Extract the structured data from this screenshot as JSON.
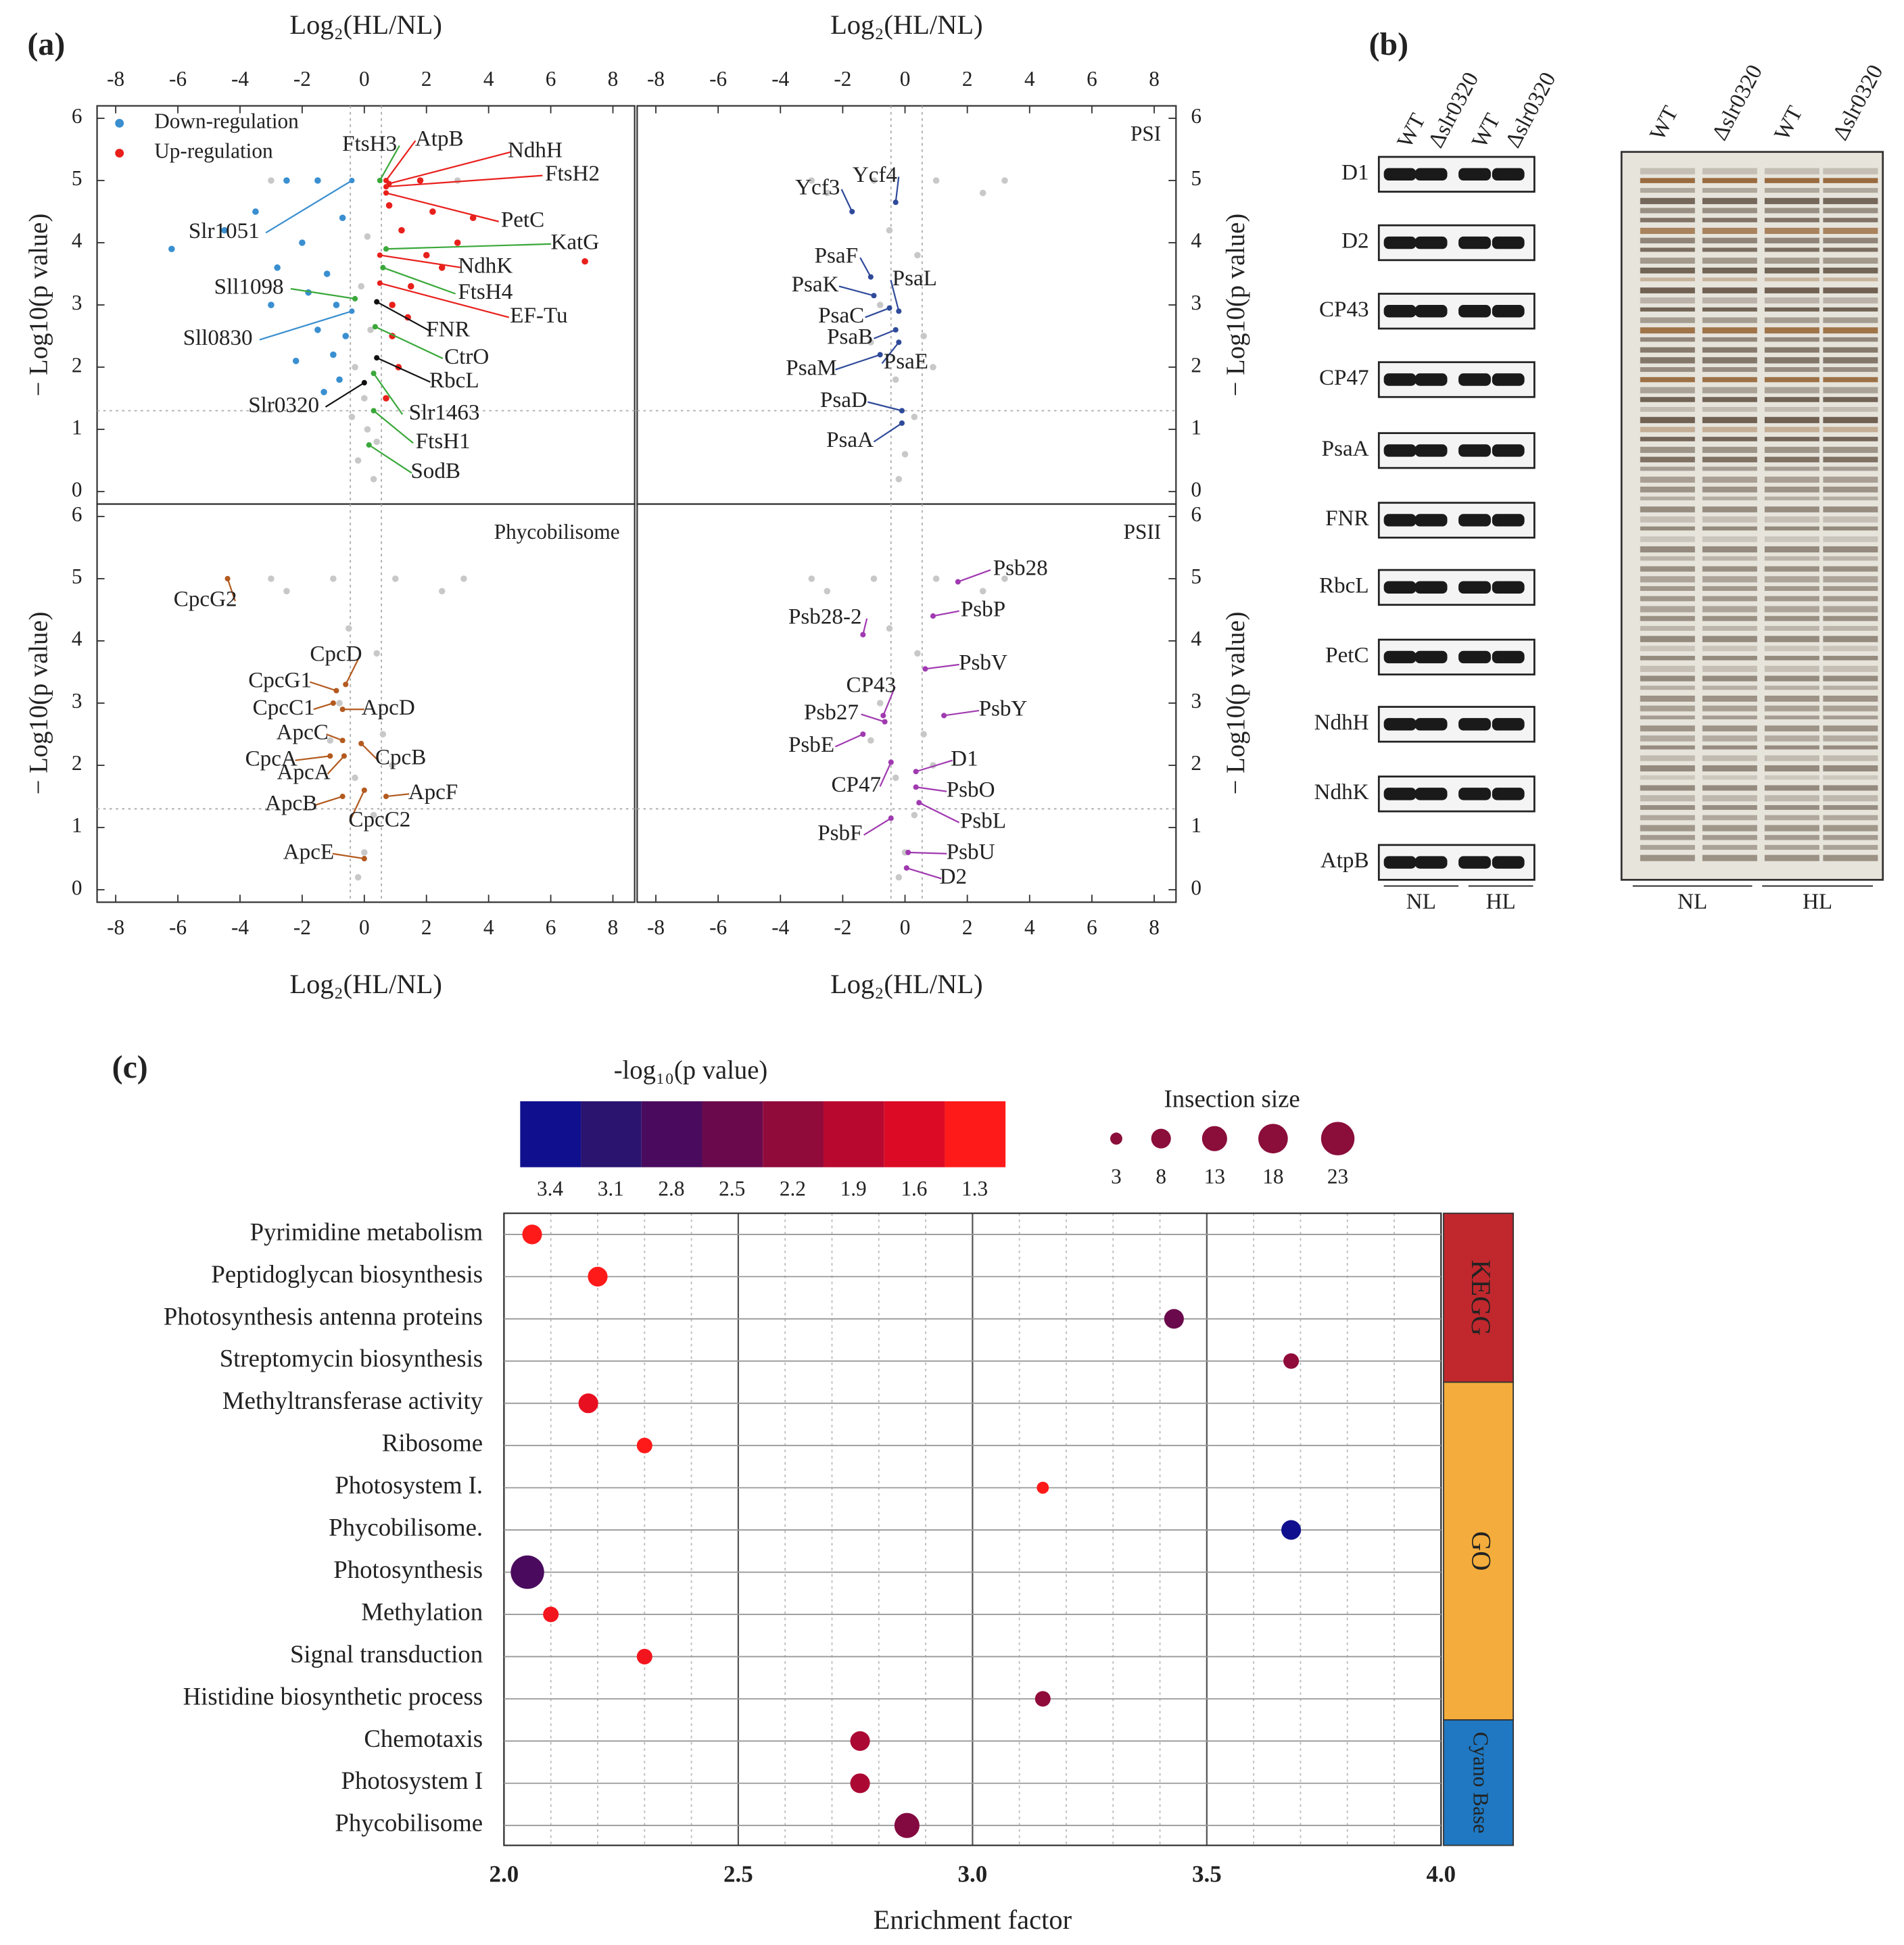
{
  "panels": [
    "(a)",
    "(b)",
    "(c)"
  ],
  "blot": {
    "lanes": [
      "WT",
      "Δslr0320",
      "WT",
      "Δslr0320"
    ],
    "proteins": [
      "D1",
      "D2",
      "CP43",
      "CP47",
      "PsaA",
      "FNR",
      "RbcL",
      "PetC",
      "NdhH",
      "NdhK",
      "AtpB"
    ],
    "groups": [
      "NL",
      "HL"
    ]
  },
  "gel": {
    "lanes": [
      "WT",
      "Δslr0320",
      "WT",
      "Δslr0320"
    ],
    "groups": [
      "NL",
      "HL"
    ]
  },
  "chart_data": [
    {
      "type": "scatter",
      "xlabel": "Log₂(HL/NL)",
      "ylabel": "− Log10(p value)",
      "xaxis": "top",
      "yaxis": "left",
      "xlim": [
        -8.6,
        8.7
      ],
      "ylim": [
        -0.2,
        6.2
      ],
      "xticks": [
        -8,
        -6,
        -4,
        -2,
        0,
        2,
        4,
        6,
        8
      ],
      "yticks": [
        0,
        1,
        2,
        3,
        4,
        5,
        6
      ],
      "thresholds": {
        "y": 1.3,
        "x": [
          -0.45,
          0.55
        ]
      },
      "legend": "upper left",
      "series": [
        {
          "name": "Down-regulation",
          "color": "#3a8fd0",
          "x": [
            -6.2,
            -4.5,
            -3.5,
            -2.8,
            -2,
            -1.8,
            -1.5,
            -1.2,
            -1,
            -0.8,
            -0.7,
            -2.5,
            -1.5,
            -0.9,
            -3,
            -1.3,
            -2.2,
            -0.6
          ],
          "values": [
            3.9,
            4.2,
            4.5,
            3.6,
            4.0,
            3.2,
            2.6,
            3.5,
            2.2,
            1.8,
            4.4,
            5.0,
            5.0,
            3.0,
            3.0,
            1.6,
            2.1,
            2.5
          ]
        },
        {
          "name": "Up-regulation",
          "color": "#e8201c",
          "x": [
            0.8,
            1.2,
            2,
            3,
            1.5,
            0.9,
            2.5,
            1.1,
            0.7,
            1.8,
            3.5,
            7.1,
            0.9,
            1.4,
            2.2
          ],
          "values": [
            4.6,
            4.2,
            3.8,
            4.0,
            3.3,
            2.5,
            3.6,
            2.0,
            1.5,
            5.0,
            4.4,
            3.7,
            3.0,
            2.8,
            4.5
          ]
        },
        {
          "color": "#c8c8c8",
          "x": [
            0.1,
            -0.2,
            0.3,
            0,
            -0.3,
            0.2,
            -0.1,
            0.1,
            3,
            -3,
            0.4,
            -0.4
          ],
          "values": [
            1.0,
            0.5,
            0.2,
            1.5,
            2.0,
            2.6,
            3.3,
            4.1,
            5,
            5,
            0.8,
            1.2
          ]
        }
      ],
      "annotations": [
        {
          "text": "FtsH3",
          "x": 0.5,
          "y": 5.0,
          "color": "#3aa83a"
        },
        {
          "text": "AtpB",
          "x": 0.7,
          "y": 5.0,
          "color": "#e8201c"
        },
        {
          "text": "NdhH",
          "x": 0.8,
          "y": 4.95,
          "color": "#e8201c"
        },
        {
          "text": "FtsH2",
          "x": 0.7,
          "y": 4.9,
          "color": "#e8201c"
        },
        {
          "text": "PetC",
          "x": 0.7,
          "y": 4.8,
          "color": "#e8201c"
        },
        {
          "text": "KatG",
          "x": 0.7,
          "y": 3.9,
          "color": "#3aa83a"
        },
        {
          "text": "NdhK",
          "x": 0.5,
          "y": 3.8,
          "color": "#e8201c"
        },
        {
          "text": "FtsH4",
          "x": 0.6,
          "y": 3.6,
          "color": "#3aa83a"
        },
        {
          "text": "EF-Tu",
          "x": 0.5,
          "y": 3.35,
          "color": "#e8201c"
        },
        {
          "text": "FNR",
          "x": 0.4,
          "y": 3.05,
          "color": "#111111"
        },
        {
          "text": "CtrO",
          "x": 0.35,
          "y": 2.65,
          "color": "#3aa83a"
        },
        {
          "text": "RbcL",
          "x": 0.4,
          "y": 2.15,
          "color": "#111111"
        },
        {
          "text": "Slr1463",
          "x": 0.3,
          "y": 1.9,
          "color": "#3aa83a"
        },
        {
          "text": "FtsH1",
          "x": 0.3,
          "y": 1.3,
          "color": "#3aa83a"
        },
        {
          "text": "SodB",
          "x": 0.15,
          "y": 0.75,
          "color": "#3aa83a"
        },
        {
          "text": "Slr0320",
          "x": 0,
          "y": 1.75,
          "color": "#111111"
        },
        {
          "text": "Slr1051",
          "x": -0.4,
          "y": 5.0,
          "color": "#3a8fd0"
        },
        {
          "text": "Sll1098",
          "x": -0.3,
          "y": 3.1,
          "color": "#3aa83a"
        },
        {
          "text": "Sll0830",
          "x": -0.4,
          "y": 2.9,
          "color": "#3a8fd0"
        }
      ]
    },
    {
      "type": "scatter",
      "title": "PSI",
      "title_color": "#2f4a9a",
      "xlabel": "Log₂(HL/NL)",
      "ylabel": "− Log10(p value)",
      "xaxis": "top",
      "yaxis": "right",
      "xlim": [
        -8.6,
        8.7
      ],
      "ylim": [
        -0.2,
        6.2
      ],
      "xticks": [
        -8,
        -6,
        -4,
        -2,
        0,
        2,
        4,
        6,
        8
      ],
      "yticks": [
        0,
        1,
        2,
        3,
        4,
        5,
        6
      ],
      "thresholds": {
        "y": 1.3,
        "x": [
          -0.45,
          0.55
        ]
      },
      "series": [
        {
          "color": "#c8c8c8",
          "x": [
            -1,
            1,
            -2.5,
            2.5,
            -0.5,
            0.4,
            -0.8,
            0.6,
            -0.3,
            0.3,
            0,
            -0.2,
            0.9,
            -1.1,
            3.2,
            -3
          ],
          "values": [
            5,
            5,
            4.8,
            4.8,
            4.2,
            3.8,
            3.0,
            2.5,
            1.8,
            1.2,
            0.6,
            0.2,
            2.0,
            2.4,
            5,
            5
          ]
        }
      ],
      "annotations": [
        {
          "text": "Ycf3",
          "x": -1.7,
          "y": 4.5,
          "color": "#2f4a9a"
        },
        {
          "text": "Ycf4",
          "x": -0.3,
          "y": 4.65,
          "color": "#2f4a9a"
        },
        {
          "text": "PsaF",
          "x": -1.1,
          "y": 3.45,
          "color": "#2f4a9a"
        },
        {
          "text": "PsaK",
          "x": -1.0,
          "y": 3.15,
          "color": "#2f4a9a"
        },
        {
          "text": "PsaL",
          "x": -0.2,
          "y": 2.9,
          "color": "#2f4a9a"
        },
        {
          "text": "PsaC",
          "x": -0.5,
          "y": 2.95,
          "color": "#2f4a9a"
        },
        {
          "text": "PsaB",
          "x": -0.3,
          "y": 2.6,
          "color": "#2f4a9a"
        },
        {
          "text": "PsaM",
          "x": -0.8,
          "y": 2.2,
          "color": "#2f4a9a"
        },
        {
          "text": "PsaE",
          "x": -0.2,
          "y": 2.4,
          "color": "#2f4a9a"
        },
        {
          "text": "PsaD",
          "x": -0.1,
          "y": 1.3,
          "color": "#2f4a9a"
        },
        {
          "text": "PsaA",
          "x": -0.1,
          "y": 1.1,
          "color": "#2f4a9a"
        }
      ]
    },
    {
      "type": "scatter",
      "title": "Phycobilisome",
      "title_color": "#b35a1f",
      "xlabel": "Log₂(HL/NL)",
      "ylabel": "− Log10(p value)",
      "xaxis": "bottom",
      "yaxis": "left",
      "xlim": [
        -8.6,
        8.7
      ],
      "ylim": [
        -0.2,
        6.2
      ],
      "xticks": [
        -8,
        -6,
        -4,
        -2,
        0,
        2,
        4,
        6,
        8
      ],
      "yticks": [
        0,
        1,
        2,
        3,
        4,
        5,
        6
      ],
      "thresholds": {
        "y": 1.3,
        "x": [
          -0.45,
          0.55
        ]
      },
      "series": [
        {
          "color": "#c8c8c8",
          "x": [
            -1,
            1,
            -2.5,
            2.5,
            -0.5,
            0.4,
            -0.8,
            0.6,
            -0.3,
            0.3,
            0,
            -0.2,
            0.9,
            -1.1,
            3.2,
            -3
          ],
          "values": [
            5,
            5,
            4.8,
            4.8,
            4.2,
            3.8,
            3.0,
            2.5,
            1.8,
            1.2,
            0.6,
            0.2,
            2.0,
            2.4,
            5,
            5
          ]
        }
      ],
      "annotations": [
        {
          "text": "CpcG2",
          "x": -4.4,
          "y": 5.0,
          "color": "#b35a1f"
        },
        {
          "text": "CpcD",
          "x": -0.6,
          "y": 3.3,
          "color": "#b35a1f"
        },
        {
          "text": "CpcG1",
          "x": -0.9,
          "y": 3.2,
          "color": "#b35a1f"
        },
        {
          "text": "CpcC1",
          "x": -1.0,
          "y": 3.0,
          "color": "#b35a1f"
        },
        {
          "text": "ApcD",
          "x": -0.7,
          "y": 2.9,
          "color": "#b35a1f"
        },
        {
          "text": "ApcC",
          "x": -0.7,
          "y": 2.4,
          "color": "#b35a1f"
        },
        {
          "text": "CpcA",
          "x": -1.1,
          "y": 2.15,
          "color": "#b35a1f"
        },
        {
          "text": "CpcB",
          "x": -0.1,
          "y": 2.35,
          "color": "#b35a1f"
        },
        {
          "text": "ApcA",
          "x": -0.65,
          "y": 2.15,
          "color": "#b35a1f"
        },
        {
          "text": "ApcF",
          "x": 0.7,
          "y": 1.5,
          "color": "#b35a1f"
        },
        {
          "text": "ApcB",
          "x": -0.7,
          "y": 1.5,
          "color": "#b35a1f"
        },
        {
          "text": "CpcC2",
          "x": 0,
          "y": 1.6,
          "color": "#b35a1f"
        },
        {
          "text": "ApcE",
          "x": 0,
          "y": 0.5,
          "color": "#b35a1f"
        }
      ]
    },
    {
      "type": "scatter",
      "title": "PSII",
      "title_color": "#a03ab0",
      "xlabel": "Log₂(HL/NL)",
      "ylabel": "− Log10(p value)",
      "xaxis": "bottom",
      "yaxis": "right",
      "xlim": [
        -8.6,
        8.7
      ],
      "ylim": [
        -0.2,
        6.2
      ],
      "xticks": [
        -8,
        -6,
        -4,
        -2,
        0,
        2,
        4,
        6,
        8
      ],
      "yticks": [
        0,
        1,
        2,
        3,
        4,
        5,
        6
      ],
      "thresholds": {
        "y": 1.3,
        "x": [
          -0.45,
          0.55
        ]
      },
      "series": [
        {
          "color": "#c8c8c8",
          "x": [
            -1,
            1,
            -2.5,
            2.5,
            -0.5,
            0.4,
            -0.8,
            0.6,
            -0.3,
            0.3,
            0,
            -0.2,
            0.9,
            -1.1,
            3.2,
            -3
          ],
          "values": [
            5,
            5,
            4.8,
            4.8,
            4.2,
            3.8,
            3.0,
            2.5,
            1.8,
            1.2,
            0.6,
            0.2,
            2.0,
            2.4,
            5,
            5
          ]
        }
      ],
      "annotations": [
        {
          "text": "Psb28",
          "x": 1.7,
          "y": 4.95,
          "color": "#a03ab0"
        },
        {
          "text": "PsbP",
          "x": 0.9,
          "y": 4.4,
          "color": "#a03ab0"
        },
        {
          "text": "Psb28-2",
          "x": -1.35,
          "y": 4.1,
          "color": "#a03ab0"
        },
        {
          "text": "PsbV",
          "x": 0.65,
          "y": 3.55,
          "color": "#a03ab0"
        },
        {
          "text": "CP43",
          "x": -0.7,
          "y": 2.8,
          "color": "#a03ab0"
        },
        {
          "text": "PsbY",
          "x": 1.25,
          "y": 2.8,
          "color": "#a03ab0"
        },
        {
          "text": "Psb27",
          "x": -0.65,
          "y": 2.7,
          "color": "#a03ab0"
        },
        {
          "text": "PsbE",
          "x": -1.35,
          "y": 2.5,
          "color": "#a03ab0"
        },
        {
          "text": "D1",
          "x": 0.35,
          "y": 1.9,
          "color": "#a03ab0"
        },
        {
          "text": "CP47",
          "x": -0.45,
          "y": 2.05,
          "color": "#a03ab0"
        },
        {
          "text": "PsbO",
          "x": 0.35,
          "y": 1.65,
          "color": "#a03ab0"
        },
        {
          "text": "PsbL",
          "x": 0.45,
          "y": 1.4,
          "color": "#a03ab0"
        },
        {
          "text": "PsbF",
          "x": -0.45,
          "y": 1.15,
          "color": "#a03ab0"
        },
        {
          "text": "PsbU",
          "x": 0.1,
          "y": 0.6,
          "color": "#a03ab0"
        },
        {
          "text": "D2",
          "x": 0.05,
          "y": 0.35,
          "color": "#a03ab0"
        }
      ]
    },
    {
      "type": "bubble",
      "xlabel": "Enrichment factor",
      "xlim": [
        2.0,
        4.0
      ],
      "xticks": [
        {
          "value": 2,
          "label": "2.0"
        },
        {
          "value": 2.5,
          "label": "2.5"
        },
        {
          "value": 3,
          "label": "3.0"
        },
        {
          "value": 3.5,
          "label": "3.5"
        },
        {
          "value": 4,
          "label": "4.0"
        }
      ],
      "categories": [
        "Pyrimidine metabolism",
        "Peptidoglycan biosynthesis",
        "Photosynthesis  antenna proteins",
        "Streptomycin biosynthesis",
        "Methyltransferase activity",
        "Ribosome",
        "Photosystem I.",
        "Phycobilisome.",
        "Photosynthesis",
        "Methylation",
        "Signal transduction",
        "Histidine biosynthetic process",
        "Chemotaxis",
        "Photosystem I",
        "Phycobilisome"
      ],
      "x": [
        2.06,
        2.2,
        3.43,
        3.68,
        2.18,
        2.3,
        3.15,
        3.68,
        2.05,
        2.1,
        2.3,
        3.15,
        2.76,
        2.76,
        2.86
      ],
      "color_values": [
        1.3,
        1.3,
        2.5,
        2.2,
        1.5,
        1.3,
        1.3,
        3.4,
        2.8,
        1.4,
        1.4,
        2.2,
        2.0,
        2.0,
        2.3
      ],
      "sizes": [
        8,
        8,
        8,
        5,
        8,
        5,
        3,
        8,
        23,
        5,
        5,
        5,
        8,
        8,
        13
      ],
      "colorbar": {
        "title": "-log₁₀(p value)",
        "ticks": [
          3.4,
          3.1,
          2.8,
          2.5,
          2.2,
          1.9,
          1.6,
          1.3
        ],
        "colors": [
          "#10108f",
          "#2a1470",
          "#4a0b5e",
          "#6a0a4c",
          "#900a3a",
          "#b8082f",
          "#dc0a24",
          "#ff1a1a"
        ]
      },
      "size_legend": {
        "title": "Insection size",
        "values": [
          3,
          8,
          13,
          18,
          23
        ],
        "color": "#8a0d3a"
      },
      "groups": [
        {
          "name": "KEGG",
          "count": 4,
          "color": "#c0282d"
        },
        {
          "name": "GO",
          "count": 8,
          "color": "#f4ad3c"
        },
        {
          "name": "Cyano Base",
          "count": 3,
          "color": "#1f78c1"
        }
      ]
    }
  ]
}
